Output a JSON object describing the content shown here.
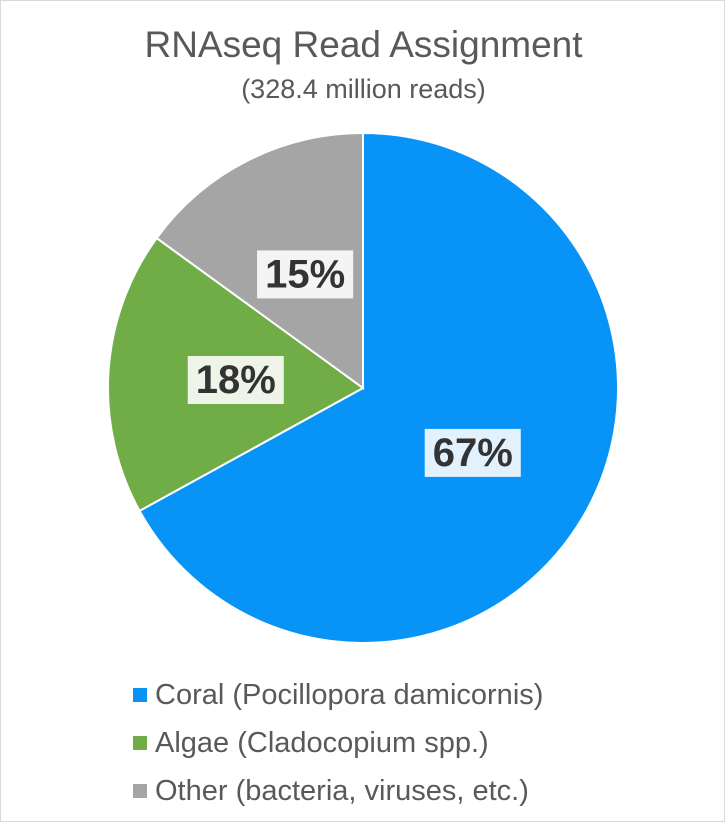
{
  "chart_data": {
    "type": "pie",
    "title": "RNAseq Read Assignment",
    "subtitle": "(328.4 million reads)",
    "slices": [
      {
        "label": "Coral (Pocillopora damicornis)",
        "value": 67,
        "display": "67%",
        "color": "#0894f7"
      },
      {
        "label": "Algae (Cladocopium spp.)",
        "value": 18,
        "display": "18%",
        "color": "#70ad47"
      },
      {
        "label": "Other (bacteria, viruses, etc.)",
        "value": 15,
        "display": "15%",
        "color": "#a5a5a5"
      }
    ],
    "legend_position": "bottom"
  }
}
